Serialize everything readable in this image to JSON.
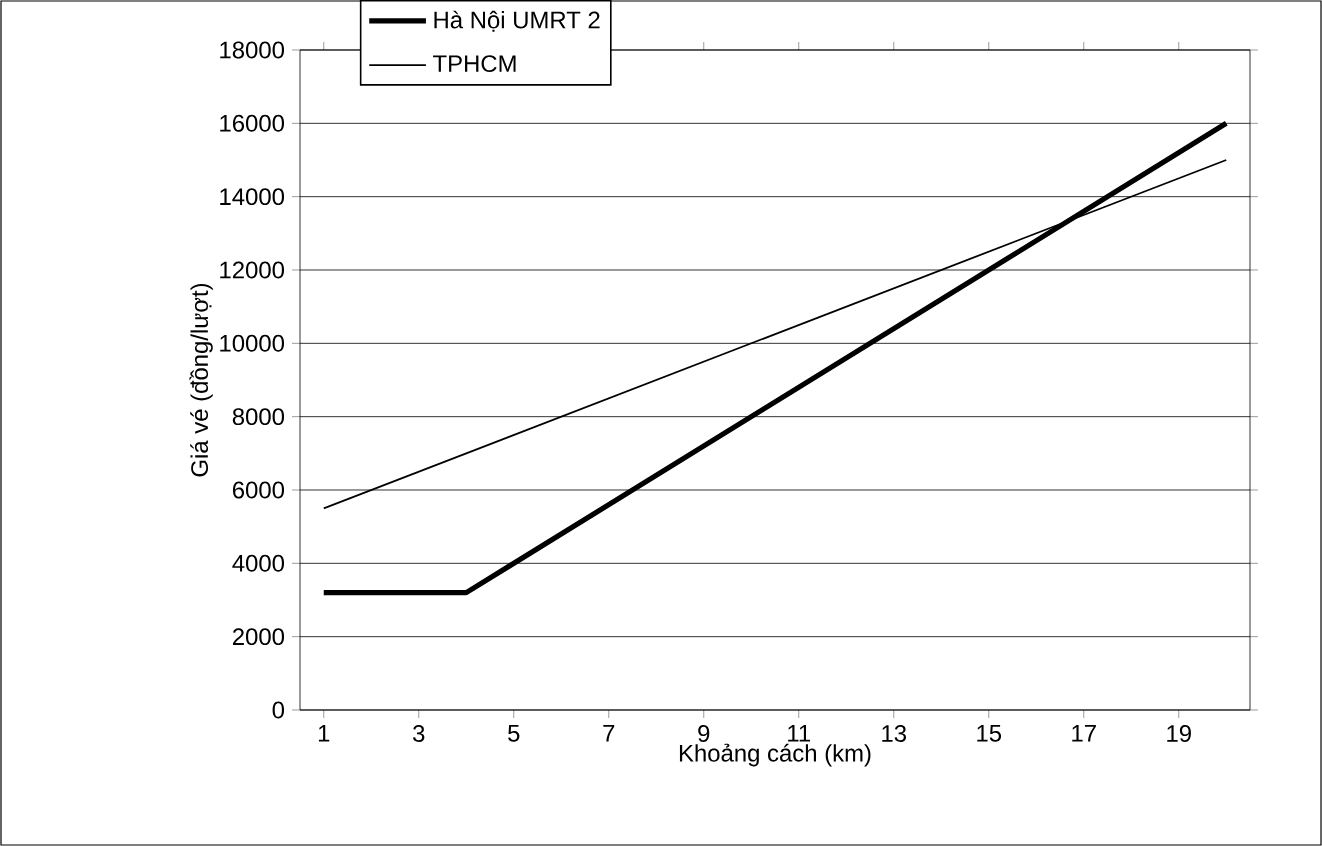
{
  "chart_data": {
    "type": "line",
    "xlabel": "Khoảng cách (km)",
    "ylabel": "Giá vé (đồng/lượt)",
    "xlim": [
      0.5,
      20.5
    ],
    "xticks": [
      1,
      3,
      5,
      7,
      9,
      11,
      13,
      15,
      17,
      19
    ],
    "ylim": [
      0,
      18000
    ],
    "yticks": [
      0,
      2000,
      4000,
      6000,
      8000,
      10000,
      12000,
      14000,
      16000,
      18000
    ],
    "grid": "y",
    "legend": "top",
    "marker": "none",
    "line_style": "solid",
    "series": [
      {
        "name": "Hà Nội UMRT 2",
        "color": "#000000",
        "x": [
          1,
          4,
          20
        ],
        "values": [
          3200,
          3200,
          16000
        ]
      },
      {
        "name": "TPHCM",
        "color": "#000000",
        "x": [
          1,
          20
        ],
        "values": [
          5500,
          15000
        ]
      }
    ]
  }
}
